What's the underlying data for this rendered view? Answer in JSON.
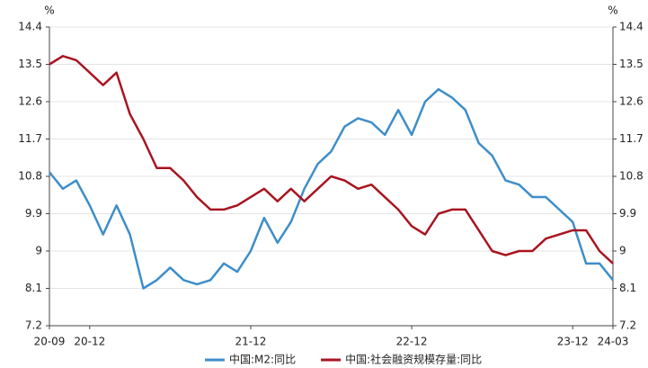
{
  "chart_data": {
    "type": "line",
    "y_unit": "%",
    "y2_unit": "%",
    "categories": [
      "20-09",
      null,
      null,
      "20-12",
      null,
      null,
      null,
      null,
      null,
      null,
      null,
      null,
      null,
      null,
      null,
      "21-12",
      null,
      null,
      null,
      null,
      null,
      null,
      null,
      null,
      null,
      null,
      null,
      "22-12",
      null,
      null,
      null,
      null,
      null,
      null,
      null,
      null,
      null,
      null,
      null,
      "23-12",
      null,
      null,
      "24-03"
    ],
    "series": [
      {
        "name": "中国:M2:同比",
        "color": "#3d8ec9",
        "values": [
          10.9,
          10.5,
          10.7,
          10.1,
          9.4,
          10.1,
          9.4,
          8.1,
          8.3,
          8.6,
          8.3,
          8.2,
          8.3,
          8.7,
          8.5,
          9.0,
          9.8,
          9.2,
          9.7,
          10.5,
          11.1,
          11.4,
          12.0,
          12.2,
          12.1,
          11.8,
          12.4,
          11.8,
          12.6,
          12.9,
          12.7,
          12.4,
          11.6,
          11.3,
          10.7,
          10.6,
          10.3,
          10.3,
          10.0,
          9.7,
          8.7,
          8.7,
          8.3
        ]
      },
      {
        "name": "中国:社会融资规模存量:同比",
        "color": "#a81420",
        "values": [
          13.5,
          13.7,
          13.6,
          13.3,
          13.0,
          13.3,
          12.3,
          11.7,
          11.0,
          11.0,
          10.7,
          10.3,
          10.0,
          10.0,
          10.1,
          10.3,
          10.5,
          10.2,
          10.5,
          10.2,
          10.5,
          10.8,
          10.7,
          10.5,
          10.6,
          10.3,
          10.0,
          9.6,
          9.4,
          9.9,
          10.0,
          10.0,
          9.5,
          9.0,
          8.9,
          9.0,
          9.0,
          9.3,
          9.4,
          9.5,
          9.5,
          9.0,
          8.7
        ]
      }
    ],
    "ylim": [
      7.2,
      14.4
    ],
    "yticks": [
      7.2,
      8.1,
      9,
      9.9,
      10.8,
      11.7,
      12.6,
      13.5,
      14.4
    ],
    "y2lim": [
      7.2,
      14.4
    ],
    "y2ticks": [
      7.2,
      8.1,
      9,
      9.9,
      10.8,
      11.7,
      12.6,
      13.5,
      14.4
    ],
    "grid": true,
    "legend": "bottom"
  }
}
